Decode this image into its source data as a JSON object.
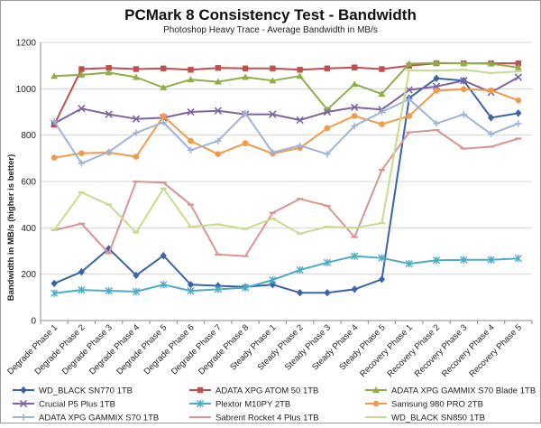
{
  "chart_data": {
    "type": "line",
    "title": "PCMark 8 Consistency Test - Bandwidth",
    "subtitle": "Photoshop Heavy Trace - Average Bandwidth in MB/s",
    "xlabel": "",
    "ylabel": "Bandwidth in MB/s (higher is better)",
    "ylim": [
      0,
      1200
    ],
    "yticks": [
      "0",
      "200",
      "400",
      "600",
      "800",
      "1000",
      "1200"
    ],
    "grid": true,
    "legend_position": "bottom",
    "categories": [
      "Degrade Phase 1",
      "Degrade Phase 2",
      "Degrade Phase 3",
      "Degrade Phase 4",
      "Degrade Phase 5",
      "Degrade Phase 6",
      "Degrade Phase 7",
      "Degrade Phase 8",
      "Steady Phase 1",
      "Steady Phase 2",
      "Steady Phase 3",
      "Steady Phase 4",
      "Steady Phase 5",
      "Recovery Phase 1",
      "Recovery Phase 2",
      "Recovery Phase 3",
      "Recovery Phase 4",
      "Recovery Phase 5"
    ],
    "series": [
      {
        "name": "WD_BLACK SN770 1TB",
        "color": "#3a63a8",
        "marker": "diamond",
        "values": [
          160,
          210,
          310,
          195,
          280,
          155,
          150,
          145,
          155,
          120,
          120,
          135,
          178,
          960,
          1045,
          1035,
          875,
          895
        ]
      },
      {
        "name": "ADATA XPG ATOM 50 1TB",
        "color": "#c0504d",
        "marker": "square",
        "values": [
          845,
          1085,
          1090,
          1085,
          1088,
          1082,
          1090,
          1088,
          1088,
          1082,
          1088,
          1092,
          1085,
          1100,
          1110,
          1110,
          1110,
          1110
        ]
      },
      {
        "name": "ADATA XPG GAMMIX S70 Blade 1TB",
        "color": "#8fae4a",
        "marker": "triangle",
        "values": [
          1055,
          1060,
          1070,
          1050,
          1005,
          1040,
          1030,
          1050,
          1035,
          1055,
          910,
          1020,
          978,
          1108,
          1112,
          1110,
          1108,
          1092
        ]
      },
      {
        "name": "Crucial P5 Plus 1TB",
        "color": "#7e64a0",
        "marker": "x",
        "values": [
          850,
          915,
          890,
          870,
          875,
          900,
          905,
          890,
          890,
          865,
          900,
          920,
          910,
          995,
          1010,
          1035,
          985,
          1050
        ]
      },
      {
        "name": "Plextor M10PY 2TB",
        "color": "#4aacc6",
        "marker": "star",
        "values": [
          118,
          132,
          128,
          125,
          155,
          128,
          135,
          142,
          175,
          218,
          250,
          278,
          270,
          245,
          260,
          262,
          262,
          268
        ]
      },
      {
        "name": "Samsung 980 PRO 2TB",
        "color": "#f39a4a",
        "marker": "circle",
        "values": [
          703,
          722,
          725,
          707,
          882,
          775,
          718,
          765,
          720,
          745,
          830,
          883,
          847,
          883,
          992,
          998,
          993,
          950
        ]
      },
      {
        "name": "ADATA XPG GAMMIX S70 1TB",
        "color": "#9fb3d8",
        "marker": "plus",
        "values": [
          860,
          678,
          728,
          810,
          855,
          735,
          775,
          895,
          725,
          755,
          718,
          840,
          900,
          955,
          850,
          890,
          805,
          850
        ]
      },
      {
        "name": "Sabrent Rocket 4 Plus 1TB",
        "color": "#d99593",
        "marker": "dash",
        "values": [
          390,
          418,
          290,
          600,
          595,
          500,
          285,
          278,
          465,
          525,
          495,
          360,
          650,
          812,
          822,
          742,
          750,
          785
        ]
      },
      {
        "name": "WD_BLACK SN850 1TB",
        "color": "#c5dc8f",
        "marker": "dash",
        "values": [
          390,
          553,
          500,
          380,
          570,
          405,
          415,
          395,
          440,
          375,
          405,
          400,
          420,
          1080,
          1078,
          1082,
          1068,
          1075
        ]
      }
    ]
  }
}
